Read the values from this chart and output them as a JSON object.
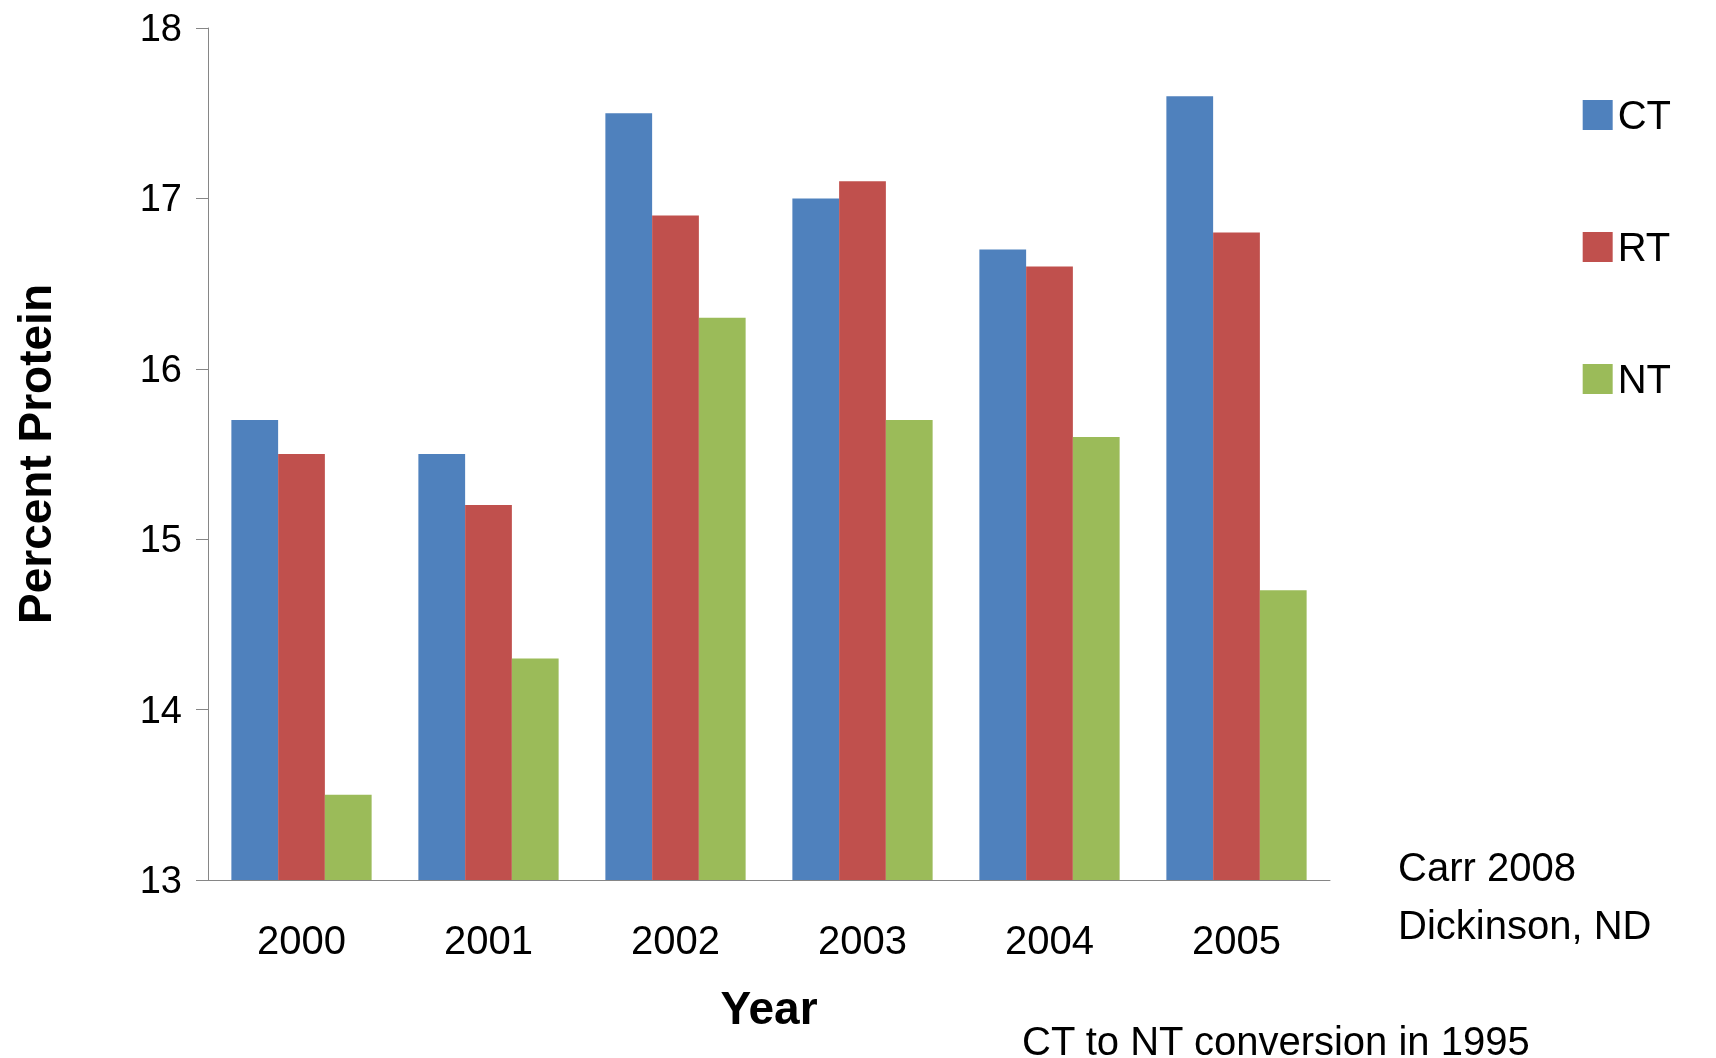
{
  "chart_data": {
    "type": "bar",
    "xlabel": "Year",
    "ylabel": "Percent Protein",
    "categories": [
      "2000",
      "2001",
      "2002",
      "2003",
      "2004",
      "2005"
    ],
    "series": [
      {
        "name": "CT",
        "color": "#4f81bd",
        "values": [
          15.7,
          15.5,
          17.5,
          17.0,
          16.7,
          17.6
        ]
      },
      {
        "name": "RT",
        "color": "#c0504d",
        "values": [
          15.5,
          15.2,
          16.9,
          17.1,
          16.6,
          16.8
        ]
      },
      {
        "name": "NT",
        "color": "#9bbb59",
        "values": [
          13.5,
          14.3,
          16.3,
          15.7,
          15.6,
          14.7
        ]
      }
    ],
    "ylim": [
      13,
      18
    ],
    "yticks": [
      13,
      14,
      15,
      16,
      17,
      18
    ],
    "grid": false,
    "legend": "right",
    "annotations": [
      "Carr 2008\nDickinson, ND",
      "CT to NT conversion in 1995"
    ]
  }
}
